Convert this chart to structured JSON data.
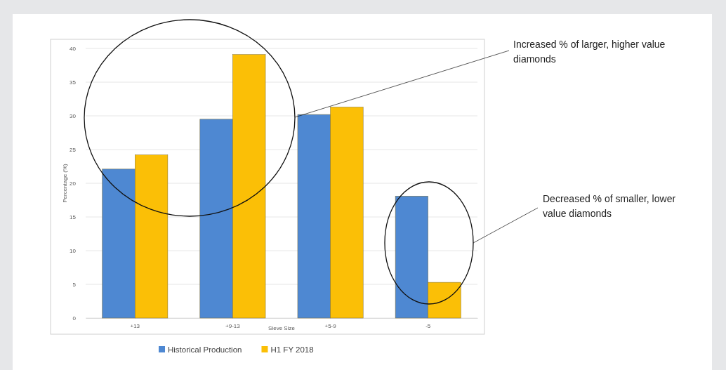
{
  "chart_data": {
    "type": "bar",
    "xlabel": "Sieve Size",
    "ylabel": "Percentage (%)",
    "categories": [
      "+13",
      "+9-13",
      "+5-9",
      "-5"
    ],
    "series": [
      {
        "name": "Historical Production",
        "color": "#4e88d2",
        "values": [
          22.1,
          29.5,
          30.2,
          18.1
        ]
      },
      {
        "name": "H1 FY 2018",
        "color": "#fbbf06",
        "values": [
          24.2,
          39.1,
          31.3,
          5.3
        ]
      }
    ],
    "ylim": [
      0,
      40
    ],
    "yticks": [
      0,
      5,
      10,
      15,
      20,
      25,
      30,
      35,
      40
    ],
    "grid": "y",
    "legend": "bottom",
    "annotations": [
      "Increased % of larger, higher value diamonds",
      "Decreased % of smaller, lower value diamonds"
    ]
  }
}
